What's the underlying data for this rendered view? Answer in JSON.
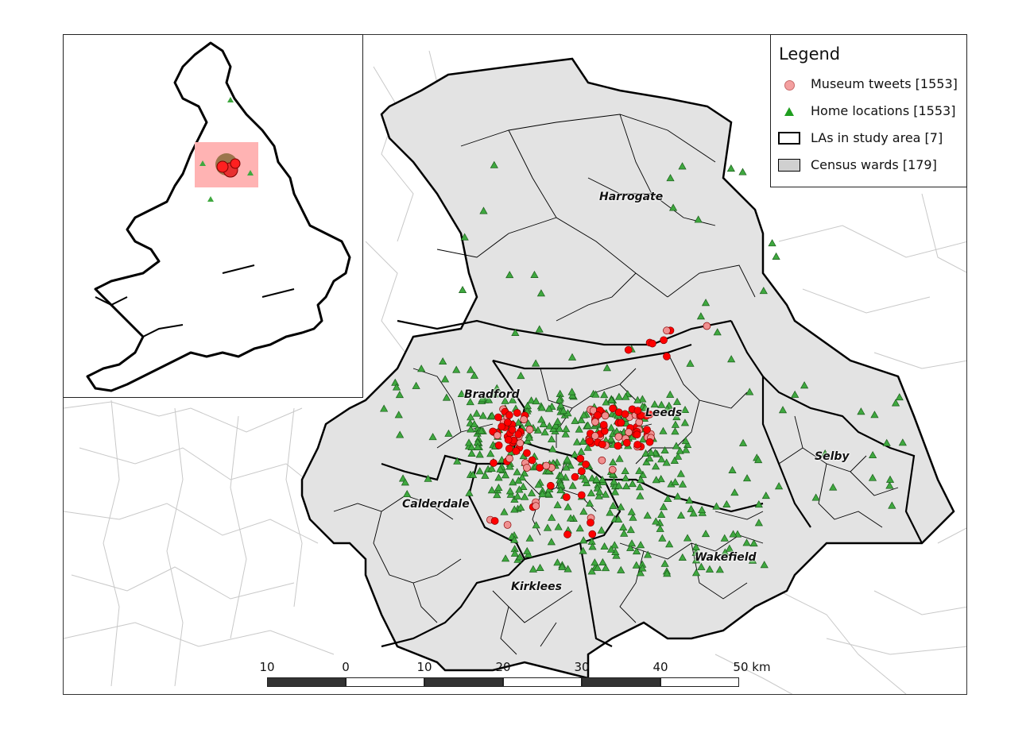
{
  "legend": {
    "title": "Legend",
    "items": [
      {
        "label": "Museum tweets [1553]",
        "symbol": "circle",
        "color": "#f4a0a0"
      },
      {
        "label": "Home locations [1553]",
        "symbol": "triangle",
        "color": "#1f9e1f"
      },
      {
        "label": "LAs in study area [7]",
        "symbol": "box-outline",
        "color": "#000000"
      },
      {
        "label": "Census wards [179]",
        "symbol": "box-filled",
        "color": "#d0d0d0"
      }
    ]
  },
  "places": [
    {
      "name": "Harrogate"
    },
    {
      "name": "Bradford"
    },
    {
      "name": "Leeds"
    },
    {
      "name": "Selby"
    },
    {
      "name": "Calderdale"
    },
    {
      "name": "Wakefield"
    },
    {
      "name": "Kirklees"
    }
  ],
  "scale": {
    "unit": "km",
    "ticks": [
      "10",
      "0",
      "10",
      "20",
      "30",
      "40",
      "50 km"
    ]
  },
  "colors": {
    "ward_fill": "#e3e3e3",
    "tweet": "#ff0000",
    "tweet_faint": "#f09090",
    "home": "#3aa03a",
    "inset_box": "#ff9a9a"
  }
}
